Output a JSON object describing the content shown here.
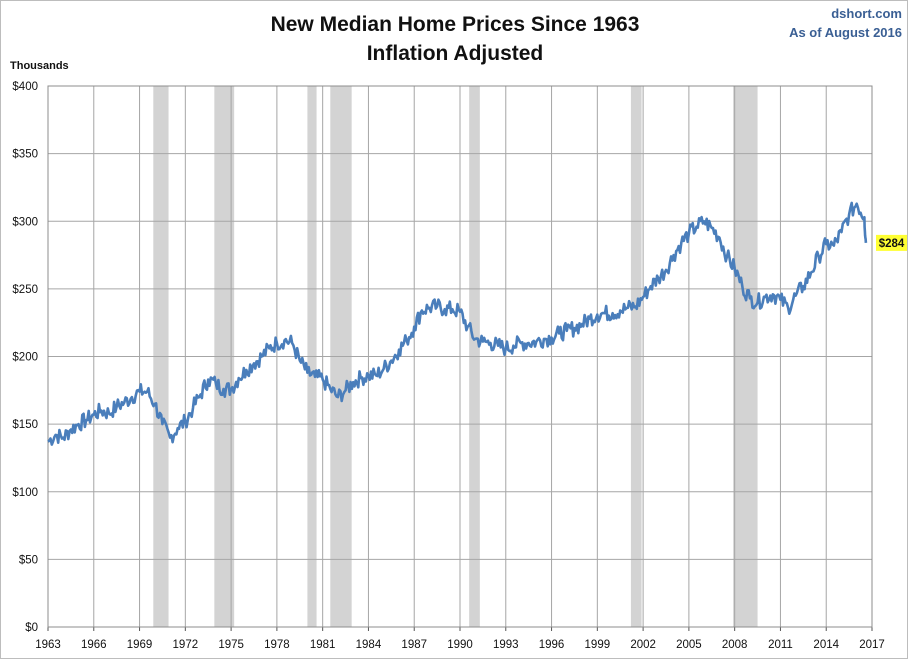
{
  "header": {
    "title_line1": "New Median Home Prices Since 1963",
    "title_line2": "Inflation Adjusted",
    "source": "dshort.com",
    "as_of": "As of August 2016",
    "unit_label": "Thousands"
  },
  "colors": {
    "line": "#4a7ebb",
    "recession": "#d3d3d3",
    "grid": "#a6a6a6",
    "callout": "#ffff33"
  },
  "chart_data": {
    "type": "line",
    "title": "New Median Home Prices Since 1963 Inflation Adjusted",
    "ylabel": "Thousands",
    "xlim": [
      1963,
      2017
    ],
    "ylim": [
      0,
      400
    ],
    "x_ticks": [
      1963,
      1966,
      1969,
      1972,
      1975,
      1978,
      1981,
      1984,
      1987,
      1990,
      1993,
      1996,
      1999,
      2002,
      2005,
      2008,
      2011,
      2014,
      2017
    ],
    "x_tick_labels": [
      "1963",
      "1966",
      "1969",
      "1972",
      "1975",
      "1978",
      "1981",
      "1984",
      "1987",
      "1990",
      "1993",
      "1996",
      "1999",
      "2002",
      "2005",
      "2008",
      "2011",
      "2014",
      "2017"
    ],
    "y_ticks": [
      0,
      50,
      100,
      150,
      200,
      250,
      300,
      350,
      400
    ],
    "y_tick_labels": [
      "$0",
      "$50",
      "$100",
      "$150",
      "$200",
      "$250",
      "$300",
      "$350",
      "$400"
    ],
    "grid": true,
    "recessions": [
      [
        1969.9,
        1970.9
      ],
      [
        1973.9,
        1975.2
      ],
      [
        1980.0,
        1980.6
      ],
      [
        1981.5,
        1982.9
      ],
      [
        1990.6,
        1991.3
      ],
      [
        2001.2,
        2001.9
      ],
      [
        2007.9,
        2009.5
      ]
    ],
    "series": [
      {
        "x": [
          1963.0,
          1963.5,
          1964.0,
          1964.5,
          1965.0,
          1965.5,
          1966.0,
          1966.5,
          1967.0,
          1967.5,
          1968.0,
          1968.5,
          1969.0,
          1969.5,
          1970.0,
          1970.5,
          1971.0,
          1971.5,
          1972.0,
          1972.5,
          1973.0,
          1973.5,
          1974.0,
          1974.5,
          1975.0,
          1975.5,
          1976.0,
          1976.5,
          1977.0,
          1977.5,
          1978.0,
          1978.5,
          1979.0,
          1979.5,
          1980.0,
          1980.5,
          1981.0,
          1981.5,
          1982.0,
          1982.5,
          1983.0,
          1983.5,
          1984.0,
          1984.5,
          1985.0,
          1985.5,
          1986.0,
          1986.5,
          1987.0,
          1987.5,
          1988.0,
          1988.5,
          1989.0,
          1989.5,
          1990.0,
          1990.5,
          1991.0,
          1991.5,
          1992.0,
          1992.5,
          1993.0,
          1993.5,
          1994.0,
          1994.5,
          1995.0,
          1995.5,
          1996.0,
          1996.5,
          1997.0,
          1997.5,
          1998.0,
          1998.5,
          1999.0,
          1999.5,
          2000.0,
          2000.5,
          2001.0,
          2001.5,
          2002.0,
          2002.5,
          2003.0,
          2003.5,
          2004.0,
          2004.5,
          2005.0,
          2005.5,
          2006.0,
          2006.5,
          2007.0,
          2007.5,
          2008.0,
          2008.5,
          2009.0,
          2009.5,
          2010.0,
          2010.5,
          2011.0,
          2011.5,
          2012.0,
          2012.5,
          2013.0,
          2013.5,
          2014.0,
          2014.5,
          2015.0,
          2015.5,
          2016.0,
          2016.5,
          2016.6
        ],
        "values": [
          137,
          142,
          140,
          146,
          150,
          153,
          157,
          160,
          158,
          163,
          166,
          170,
          174,
          174,
          165,
          150,
          140,
          147,
          152,
          162,
          172,
          183,
          180,
          176,
          176,
          184,
          190,
          195,
          200,
          206,
          210,
          212,
          210,
          197,
          188,
          185,
          183,
          176,
          170,
          175,
          181,
          184,
          186,
          186,
          191,
          197,
          205,
          212,
          222,
          234,
          236,
          237,
          235,
          235,
          233,
          222,
          213,
          211,
          210,
          208,
          206,
          208,
          210,
          210,
          211,
          213,
          214,
          217,
          219,
          221,
          224,
          228,
          231,
          232,
          232,
          234,
          236,
          237,
          244,
          252,
          258,
          264,
          275,
          284,
          291,
          296,
          300,
          295,
          288,
          274,
          265,
          252,
          243,
          240,
          244,
          246,
          242,
          236,
          245,
          252,
          262,
          274,
          283,
          282,
          292,
          305,
          313,
          303,
          284
        ]
      }
    ],
    "last_value_label": "$284"
  }
}
